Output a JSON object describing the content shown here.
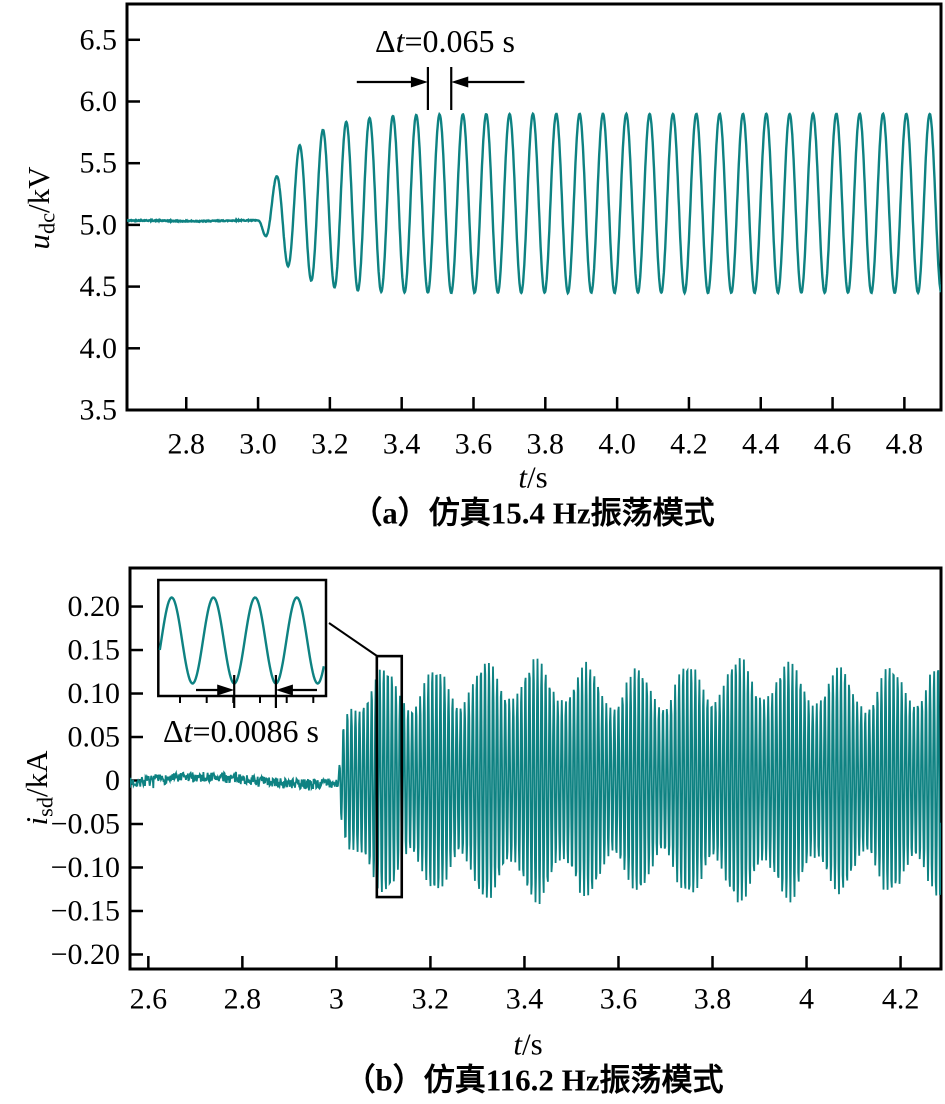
{
  "figure": {
    "background": "#ffffff",
    "waveform_color": "#0e8282",
    "axis_color": "#000000"
  },
  "chart_data": [
    {
      "type": "line",
      "panel": "a",
      "caption": "（a）仿真15.4 Hz振荡模式",
      "xlabel": {
        "var": "t",
        "unit": "/s"
      },
      "ylabel": {
        "var": "u",
        "sub": "dc",
        "unit": "/kV"
      },
      "xlim": [
        2.635,
        4.902
      ],
      "ylim": [
        3.5,
        6.79
      ],
      "xticks": {
        "values": [
          2.8,
          3.0,
          3.2,
          3.4,
          3.6,
          3.8,
          4.0,
          4.2,
          4.4,
          4.6,
          4.8
        ],
        "labels": [
          "2.8",
          "3.0",
          "3.2",
          "3.4",
          "3.6",
          "3.8",
          "4.0",
          "4.2",
          "4.4",
          "4.6",
          "4.8"
        ]
      },
      "yticks": {
        "values": [
          3.5,
          4.0,
          4.5,
          5.0,
          5.5,
          6.0,
          6.5
        ],
        "labels": [
          "3.5",
          "4.0",
          "4.5",
          "5.0",
          "5.5",
          "6.0",
          "6.5"
        ]
      },
      "grid": false,
      "signal": {
        "description": "DC voltage flat at about 5.03 kV until t=3.0 s, then a growing 15.4 Hz oscillation settling to peaks 5.9 kV and troughs 4.45 kV",
        "baseline_kV": 5.03,
        "onset_s": 3.0,
        "freq_hz": 15.4,
        "period_s": 0.065,
        "steady_center_kV": 5.175,
        "steady_amplitude_kV": 0.725,
        "peak_reference_s": 3.473,
        "amp_ramp_tau_s": 0.09,
        "center_ramp_tau_s": 0.12,
        "noise_kV": 0.006
      },
      "annotation": {
        "label": {
          "delta": "Δ",
          "var": "t",
          "rest": "=0.065 s"
        },
        "marker_times_s": [
          3.473,
          3.538
        ]
      }
    },
    {
      "type": "line",
      "panel": "b",
      "caption": "（b）仿真116.2 Hz振荡模式",
      "xlabel": {
        "var": "t",
        "unit": "/s"
      },
      "ylabel": {
        "var": "i",
        "sub": "sd",
        "unit": "/kA"
      },
      "xlim": [
        2.561,
        4.286
      ],
      "ylim": [
        -0.2167,
        0.2443
      ],
      "xticks": {
        "values": [
          2.6,
          2.8,
          3.0,
          3.2,
          3.4,
          3.6,
          3.8,
          4.0,
          4.2
        ],
        "labels": [
          "2.6",
          "2.8",
          "3",
          "3.2",
          "3.4",
          "3.6",
          "3.8",
          "4",
          "4.2"
        ]
      },
      "yticks": {
        "values": [
          -0.2,
          -0.15,
          -0.1,
          -0.05,
          0,
          0.05,
          0.1,
          0.15,
          0.2
        ],
        "labels": [
          "−0.20",
          "−0.15",
          "−0.10",
          "−0.05",
          "0",
          "0.05",
          "0.10",
          "0.15",
          "0.20"
        ]
      },
      "grid": false,
      "signal": {
        "description": "d-axis current noise of about ±0.01 kA until t=3.0 s, then a 116.2 Hz oscillation with beating envelope between ±0.09 and ±0.14 kA",
        "baseline_kA": 0,
        "onset_s": 3.004,
        "freq_hz": 116.2,
        "period_s": 0.0086,
        "envelope_mean_kA": 0.112,
        "envelope_beat_kA": 0.024,
        "beat_freq_hz": 9.3,
        "amp_ramp_tau_s": 0.016,
        "noise_kA": 0.006
      },
      "annotation": {
        "label": {
          "delta": "Δ",
          "var": "t",
          "rest": "=0.0086 s"
        }
      },
      "inset": {
        "cycles_shown": 4,
        "period_s": 0.0086,
        "zoom_region": {
          "t_start_s": 3.086,
          "t_end_s": 3.139,
          "i_min_kA": -0.134,
          "i_max_kA": 0.143
        }
      }
    }
  ]
}
